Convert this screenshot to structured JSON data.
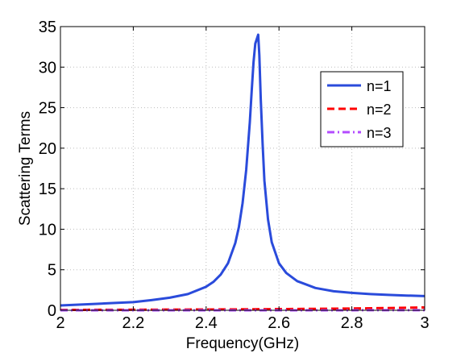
{
  "chart_data": {
    "type": "line",
    "title": "",
    "xlabel": "Frequency(GHz)",
    "ylabel": "Scattering Terms",
    "xlim": [
      2,
      3
    ],
    "ylim": [
      0,
      35
    ],
    "x_ticks": [
      "2",
      "2.2",
      "2.4",
      "2.6",
      "2.8",
      "3"
    ],
    "y_ticks": [
      "0",
      "5",
      "10",
      "15",
      "20",
      "25",
      "30",
      "35"
    ],
    "grid": true,
    "legend_position": "top-right",
    "series": [
      {
        "name": "n=1",
        "color": "#2a4bdb",
        "style": "solid",
        "x": [
          2.0,
          2.05,
          2.1,
          2.15,
          2.2,
          2.25,
          2.3,
          2.35,
          2.4,
          2.42,
          2.44,
          2.46,
          2.48,
          2.49,
          2.5,
          2.51,
          2.52,
          2.525,
          2.53,
          2.535,
          2.54,
          2.543,
          2.546,
          2.55,
          2.555,
          2.56,
          2.57,
          2.58,
          2.6,
          2.62,
          2.65,
          2.7,
          2.75,
          2.8,
          2.85,
          2.9,
          2.95,
          3.0
        ],
        "y": [
          0.6,
          0.7,
          0.8,
          0.9,
          1.0,
          1.25,
          1.55,
          2.0,
          2.9,
          3.5,
          4.4,
          5.8,
          8.3,
          10.3,
          13.2,
          17.3,
          23.2,
          27.0,
          30.6,
          32.9,
          33.6,
          34.0,
          31.5,
          26.0,
          20.5,
          16.0,
          11.2,
          8.4,
          5.8,
          4.6,
          3.6,
          2.75,
          2.35,
          2.15,
          2.0,
          1.9,
          1.82,
          1.75
        ]
      },
      {
        "name": "n=2",
        "color": "#ff0000",
        "style": "dashed",
        "x": [
          2.0,
          2.2,
          2.4,
          2.5,
          2.6,
          2.7,
          2.8,
          2.9,
          3.0
        ],
        "y": [
          0.05,
          0.07,
          0.1,
          0.12,
          0.15,
          0.18,
          0.22,
          0.28,
          0.35
        ]
      },
      {
        "name": "n=3",
        "color": "#b34bff",
        "style": "dashdot",
        "x": [
          2.0,
          2.5,
          3.0
        ],
        "y": [
          0.0,
          0.0,
          0.01
        ]
      }
    ]
  }
}
